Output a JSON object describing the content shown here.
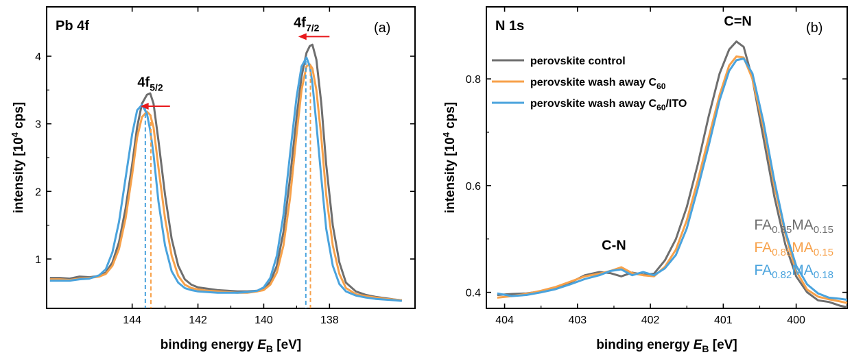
{
  "colors": {
    "control": "#6e6e6e",
    "wash": "#f7a14a",
    "wash_ito": "#4aa3dd",
    "arrow": "#e8191c"
  },
  "chart_data": [
    {
      "type": "line",
      "panel_title": "Pb 4f",
      "panel_letter": "(a)",
      "xlabel_main": "binding energy ",
      "xlabel_var": "E",
      "xlabel_sub": "B",
      "xlabel_unit": " [eV]",
      "ylabel_main": "intensity [10",
      "ylabel_sup": "4",
      "ylabel_unit": " cps]",
      "xlim": [
        146.6,
        135.4
      ],
      "ylim": [
        0.27,
        4.73
      ],
      "x_ticks": [
        144,
        142,
        140,
        138
      ],
      "x_tick_labels": [
        "144",
        "142",
        "140",
        "138"
      ],
      "y_ticks": [
        1,
        2,
        3,
        4
      ],
      "y_tick_labels": [
        "1",
        "2",
        "3",
        "4"
      ],
      "peak_labels": [
        {
          "base": "4f",
          "sub": "5/2",
          "x": 143.45,
          "y": 3.55
        },
        {
          "base": "4f",
          "sub": "7/2",
          "x": 138.7,
          "y": 4.43
        }
      ],
      "arrows": [
        {
          "x_from": 142.85,
          "x_to": 143.75,
          "y": 3.26
        },
        {
          "x_from": 138.0,
          "x_to": 138.95,
          "y": 4.29
        }
      ],
      "vlines": [
        {
          "series": 1,
          "x": 143.43,
          "y_top": 3.13
        },
        {
          "series": 2,
          "x": 143.6,
          "y_top": 3.25
        },
        {
          "series": 1,
          "x": 138.58,
          "y_top": 3.87
        },
        {
          "series": 2,
          "x": 138.72,
          "y_top": 3.93
        }
      ],
      "series": [
        {
          "x": [
            146.5,
            146.2,
            145.9,
            145.6,
            145.3,
            145.0,
            144.8,
            144.6,
            144.4,
            144.2,
            144.0,
            143.85,
            143.7,
            143.55,
            143.45,
            143.35,
            143.2,
            143.0,
            142.8,
            142.6,
            142.4,
            142.2,
            142.0,
            141.7,
            141.4,
            141.1,
            140.8,
            140.5,
            140.2,
            140.0,
            139.8,
            139.6,
            139.4,
            139.2,
            139.0,
            138.85,
            138.7,
            138.6,
            138.52,
            138.4,
            138.25,
            138.1,
            137.9,
            137.7,
            137.5,
            137.2,
            136.9,
            136.6,
            136.3,
            136.0,
            135.8
          ],
          "y": [
            0.72,
            0.72,
            0.71,
            0.74,
            0.73,
            0.75,
            0.8,
            0.95,
            1.25,
            1.75,
            2.4,
            2.95,
            3.3,
            3.43,
            3.45,
            3.3,
            2.75,
            1.95,
            1.3,
            0.9,
            0.7,
            0.62,
            0.58,
            0.56,
            0.54,
            0.53,
            0.52,
            0.52,
            0.53,
            0.56,
            0.66,
            0.9,
            1.4,
            2.2,
            3.1,
            3.7,
            4.05,
            4.15,
            4.17,
            3.95,
            3.3,
            2.4,
            1.5,
            0.95,
            0.65,
            0.52,
            0.47,
            0.44,
            0.42,
            0.4,
            0.39
          ]
        },
        {
          "x": [
            146.5,
            146.2,
            145.9,
            145.6,
            145.3,
            145.0,
            144.8,
            144.6,
            144.4,
            144.2,
            144.0,
            143.85,
            143.7,
            143.55,
            143.45,
            143.35,
            143.2,
            143.0,
            142.8,
            142.6,
            142.4,
            142.2,
            142.0,
            141.7,
            141.4,
            141.1,
            140.8,
            140.5,
            140.2,
            140.0,
            139.8,
            139.6,
            139.4,
            139.2,
            139.0,
            138.85,
            138.7,
            138.6,
            138.52,
            138.4,
            138.25,
            138.1,
            137.9,
            137.7,
            137.5,
            137.2,
            136.9,
            136.6,
            136.3,
            136.0,
            135.8
          ],
          "y": [
            0.7,
            0.7,
            0.69,
            0.71,
            0.72,
            0.74,
            0.78,
            0.9,
            1.15,
            1.6,
            2.25,
            2.8,
            3.1,
            3.18,
            3.13,
            2.95,
            2.35,
            1.6,
            1.05,
            0.75,
            0.62,
            0.57,
            0.55,
            0.53,
            0.52,
            0.51,
            0.5,
            0.5,
            0.52,
            0.54,
            0.62,
            0.8,
            1.2,
            1.9,
            2.85,
            3.5,
            3.85,
            3.88,
            3.82,
            3.5,
            2.8,
            1.95,
            1.2,
            0.78,
            0.57,
            0.48,
            0.45,
            0.43,
            0.41,
            0.4,
            0.39
          ]
        },
        {
          "x": [
            146.5,
            146.2,
            145.9,
            145.6,
            145.3,
            145.0,
            144.8,
            144.6,
            144.4,
            144.2,
            144.0,
            143.85,
            143.7,
            143.55,
            143.45,
            143.35,
            143.2,
            143.0,
            142.8,
            142.6,
            142.4,
            142.2,
            142.0,
            141.7,
            141.4,
            141.1,
            140.8,
            140.5,
            140.2,
            140.0,
            139.8,
            139.6,
            139.4,
            139.2,
            139.0,
            138.85,
            138.7,
            138.6,
            138.52,
            138.4,
            138.25,
            138.1,
            137.9,
            137.7,
            137.5,
            137.2,
            136.9,
            136.6,
            136.3,
            136.0,
            135.8
          ],
          "y": [
            0.68,
            0.68,
            0.68,
            0.7,
            0.71,
            0.76,
            0.85,
            1.1,
            1.55,
            2.2,
            2.85,
            3.2,
            3.28,
            3.15,
            2.9,
            2.55,
            1.85,
            1.2,
            0.82,
            0.65,
            0.57,
            0.54,
            0.52,
            0.51,
            0.5,
            0.5,
            0.5,
            0.51,
            0.53,
            0.58,
            0.72,
            1.05,
            1.65,
            2.55,
            3.4,
            3.85,
            3.98,
            3.85,
            3.6,
            3.0,
            2.2,
            1.45,
            0.9,
            0.63,
            0.52,
            0.46,
            0.43,
            0.41,
            0.4,
            0.39,
            0.38
          ]
        }
      ]
    },
    {
      "type": "line",
      "panel_title": "N 1s",
      "panel_letter": "(b)",
      "xlabel_main": "binding energy ",
      "xlabel_var": "E",
      "xlabel_sub": "B",
      "xlabel_unit": " [eV]",
      "ylabel_main": "intensity [10",
      "ylabel_sup": "4",
      "ylabel_unit": " cps]",
      "xlim": [
        404.25,
        399.3
      ],
      "ylim": [
        0.37,
        0.935
      ],
      "x_ticks": [
        404,
        403,
        402,
        401,
        400
      ],
      "x_tick_labels": [
        "404",
        "403",
        "402",
        "401",
        "400"
      ],
      "y_ticks": [
        0.4,
        0.6,
        0.8
      ],
      "y_tick_labels": [
        "0.4",
        "0.6",
        "0.8"
      ],
      "peak_labels": [
        {
          "text": "C=N",
          "x": 400.8,
          "y": 0.9
        },
        {
          "text": "C-N",
          "x": 402.5,
          "y": 0.48
        }
      ],
      "legend": [
        {
          "text": "perovskite control"
        },
        {
          "text": "perovskite wash away C",
          "sub": "60"
        },
        {
          "text": "perovskite wash away C",
          "sub": "60",
          "tail": "/ITO"
        }
      ],
      "compositions": [
        {
          "fa": "FA",
          "fa_sub": "0.85",
          "ma": "MA",
          "ma_sub": "0.15"
        },
        {
          "fa": "FA",
          "fa_sub": "0.85",
          "ma": "MA",
          "ma_sub": "0.15"
        },
        {
          "fa": "FA",
          "fa_sub": "0.82",
          "ma": "MA",
          "ma_sub": "0.18"
        }
      ],
      "series": [
        {
          "x": [
            404.1,
            403.9,
            403.7,
            403.5,
            403.3,
            403.1,
            402.9,
            402.7,
            402.55,
            402.4,
            402.25,
            402.1,
            401.95,
            401.8,
            401.65,
            401.5,
            401.35,
            401.2,
            401.05,
            400.92,
            400.82,
            400.72,
            400.6,
            400.45,
            400.3,
            400.15,
            400.0,
            399.85,
            399.7,
            399.55,
            399.4,
            399.3
          ],
          "y": [
            0.395,
            0.397,
            0.398,
            0.402,
            0.408,
            0.418,
            0.432,
            0.438,
            0.436,
            0.43,
            0.437,
            0.433,
            0.435,
            0.46,
            0.5,
            0.56,
            0.64,
            0.73,
            0.81,
            0.855,
            0.87,
            0.86,
            0.8,
            0.69,
            0.58,
            0.49,
            0.43,
            0.4,
            0.385,
            0.382,
            0.375,
            0.372
          ]
        },
        {
          "x": [
            404.1,
            403.9,
            403.7,
            403.5,
            403.3,
            403.1,
            402.9,
            402.7,
            402.55,
            402.4,
            402.25,
            402.1,
            401.95,
            401.8,
            401.65,
            401.5,
            401.35,
            401.2,
            401.05,
            400.92,
            400.82,
            400.72,
            400.6,
            400.45,
            400.3,
            400.15,
            400.0,
            399.85,
            399.7,
            399.55,
            399.4,
            399.3
          ],
          "y": [
            0.39,
            0.393,
            0.397,
            0.403,
            0.41,
            0.42,
            0.43,
            0.435,
            0.44,
            0.447,
            0.436,
            0.432,
            0.43,
            0.448,
            0.48,
            0.535,
            0.61,
            0.69,
            0.77,
            0.825,
            0.842,
            0.84,
            0.8,
            0.71,
            0.6,
            0.51,
            0.44,
            0.405,
            0.392,
            0.387,
            0.383,
            0.38
          ]
        },
        {
          "x": [
            404.1,
            403.9,
            403.7,
            403.5,
            403.3,
            403.1,
            402.9,
            402.7,
            402.55,
            402.4,
            402.25,
            402.1,
            401.95,
            401.8,
            401.65,
            401.5,
            401.35,
            401.2,
            401.05,
            400.92,
            400.82,
            400.72,
            400.6,
            400.45,
            400.3,
            400.15,
            400.0,
            399.85,
            399.7,
            399.55,
            399.4,
            399.3
          ],
          "y": [
            0.398,
            0.393,
            0.395,
            0.4,
            0.406,
            0.415,
            0.425,
            0.432,
            0.44,
            0.443,
            0.432,
            0.438,
            0.432,
            0.445,
            0.47,
            0.52,
            0.595,
            0.675,
            0.76,
            0.815,
            0.835,
            0.838,
            0.81,
            0.72,
            0.61,
            0.515,
            0.45,
            0.415,
            0.398,
            0.39,
            0.388,
            0.386
          ]
        }
      ]
    }
  ]
}
